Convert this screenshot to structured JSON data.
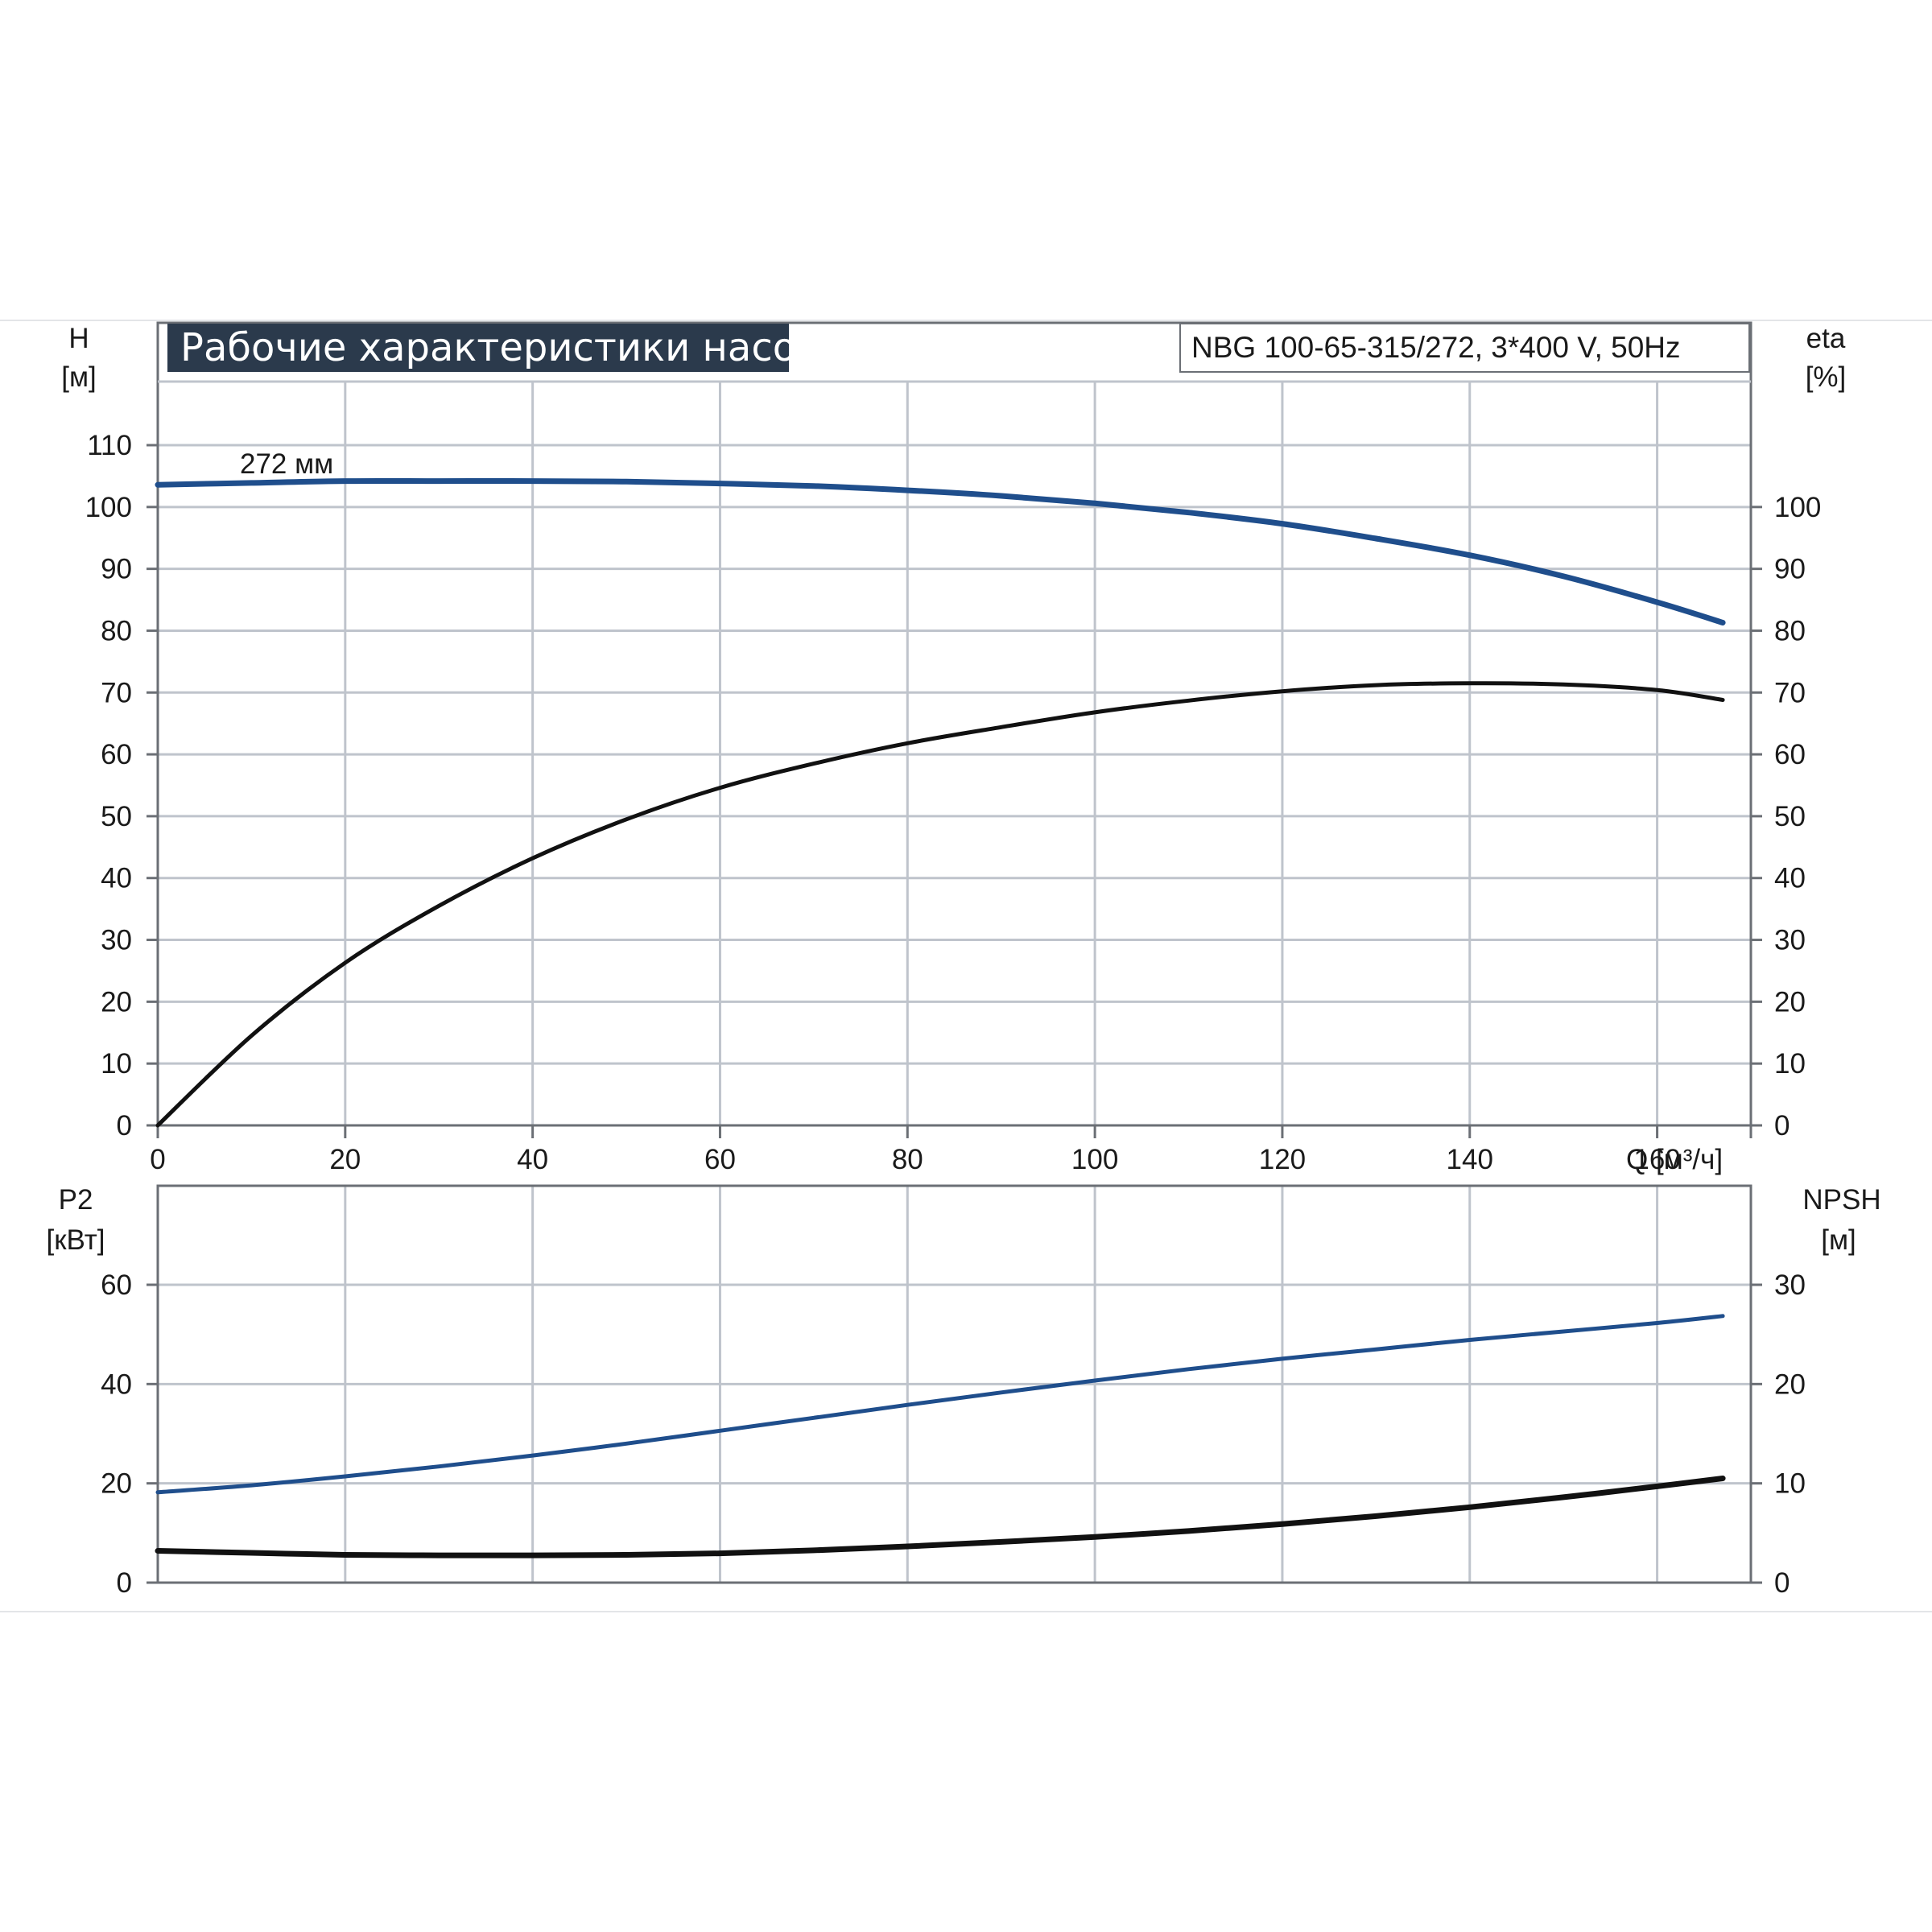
{
  "chart_title": "Рабочие характеристики насоса",
  "model_label": "NBG 100-65-315/272, 3*400 V, 50Hz",
  "colors": {
    "title_bg": "#2b3a4c",
    "blue_curve": "#1f4e8c",
    "black_curve": "#111111",
    "grid": "#bfc4cc",
    "frame": "#6b6f75"
  },
  "chart_data": [
    {
      "type": "line",
      "panel": "upper",
      "xlabel": "Q [м³/ч]",
      "x_ticks": [
        0,
        20,
        40,
        60,
        80,
        100,
        120,
        140,
        160
      ],
      "xlim": [
        0,
        170
      ],
      "left_axis": {
        "label_top": "H",
        "label_unit": "[м]",
        "ylim": [
          0,
          120
        ],
        "ticks": [
          0,
          10,
          20,
          30,
          40,
          50,
          60,
          70,
          80,
          90,
          100,
          110
        ]
      },
      "right_axis": {
        "label_top": "eta",
        "label_unit": "[%]",
        "ylim": [
          0,
          120
        ],
        "ticks": [
          0,
          10,
          20,
          30,
          40,
          50,
          60,
          70,
          80,
          90,
          100
        ]
      },
      "annotation": "272 мм",
      "series": [
        {
          "axis": "left",
          "color": "#1f4e8c",
          "x": [
            0,
            10,
            20,
            30,
            40,
            50,
            60,
            70,
            80,
            90,
            100,
            110,
            120,
            130,
            140,
            150,
            160,
            167
          ],
          "y": [
            103.6,
            103.9,
            104.2,
            104.2,
            104.2,
            104.1,
            103.8,
            103.4,
            102.7,
            101.8,
            100.6,
            99.1,
            97.3,
            94.9,
            92.2,
            88.8,
            84.6,
            81.3
          ]
        },
        {
          "axis": "right",
          "color": "#111111",
          "x": [
            0,
            10,
            20,
            30,
            40,
            50,
            60,
            70,
            80,
            90,
            100,
            110,
            120,
            130,
            140,
            150,
            160,
            167
          ],
          "y": [
            0,
            14.5,
            26.3,
            35.5,
            43.2,
            49.5,
            54.6,
            58.5,
            61.8,
            64.4,
            66.8,
            68.7,
            70.2,
            71.2,
            71.5,
            71.3,
            70.4,
            68.8
          ]
        }
      ]
    },
    {
      "type": "line",
      "panel": "lower",
      "x_ticks": [
        0,
        20,
        40,
        60,
        80,
        100,
        120,
        140,
        160
      ],
      "xlim": [
        0,
        170
      ],
      "left_axis": {
        "label_top": "P2",
        "label_unit": "[кВт]",
        "ylim": [
          0,
          80
        ],
        "ticks": [
          0,
          20,
          40,
          60
        ]
      },
      "right_axis": {
        "label_top": "NPSH",
        "label_unit": "[м]",
        "ylim": [
          0,
          40
        ],
        "ticks": [
          0,
          10,
          20,
          30
        ]
      },
      "series": [
        {
          "axis": "left",
          "color": "#1f4e8c",
          "x": [
            0,
            10,
            20,
            30,
            40,
            50,
            60,
            70,
            80,
            90,
            100,
            110,
            120,
            130,
            140,
            150,
            160,
            167
          ],
          "y": [
            18.2,
            19.6,
            21.4,
            23.4,
            25.6,
            28.0,
            30.6,
            33.2,
            35.8,
            38.3,
            40.7,
            43.0,
            45.1,
            47.0,
            48.9,
            50.6,
            52.3,
            53.7
          ]
        },
        {
          "axis": "right",
          "color": "#111111",
          "x": [
            0,
            10,
            20,
            30,
            40,
            50,
            60,
            70,
            80,
            90,
            100,
            110,
            120,
            130,
            140,
            150,
            160,
            167
          ],
          "y": [
            3.2,
            3.0,
            2.8,
            2.75,
            2.75,
            2.8,
            2.95,
            3.25,
            3.65,
            4.1,
            4.6,
            5.2,
            5.9,
            6.7,
            7.6,
            8.6,
            9.7,
            10.5
          ]
        }
      ]
    }
  ]
}
